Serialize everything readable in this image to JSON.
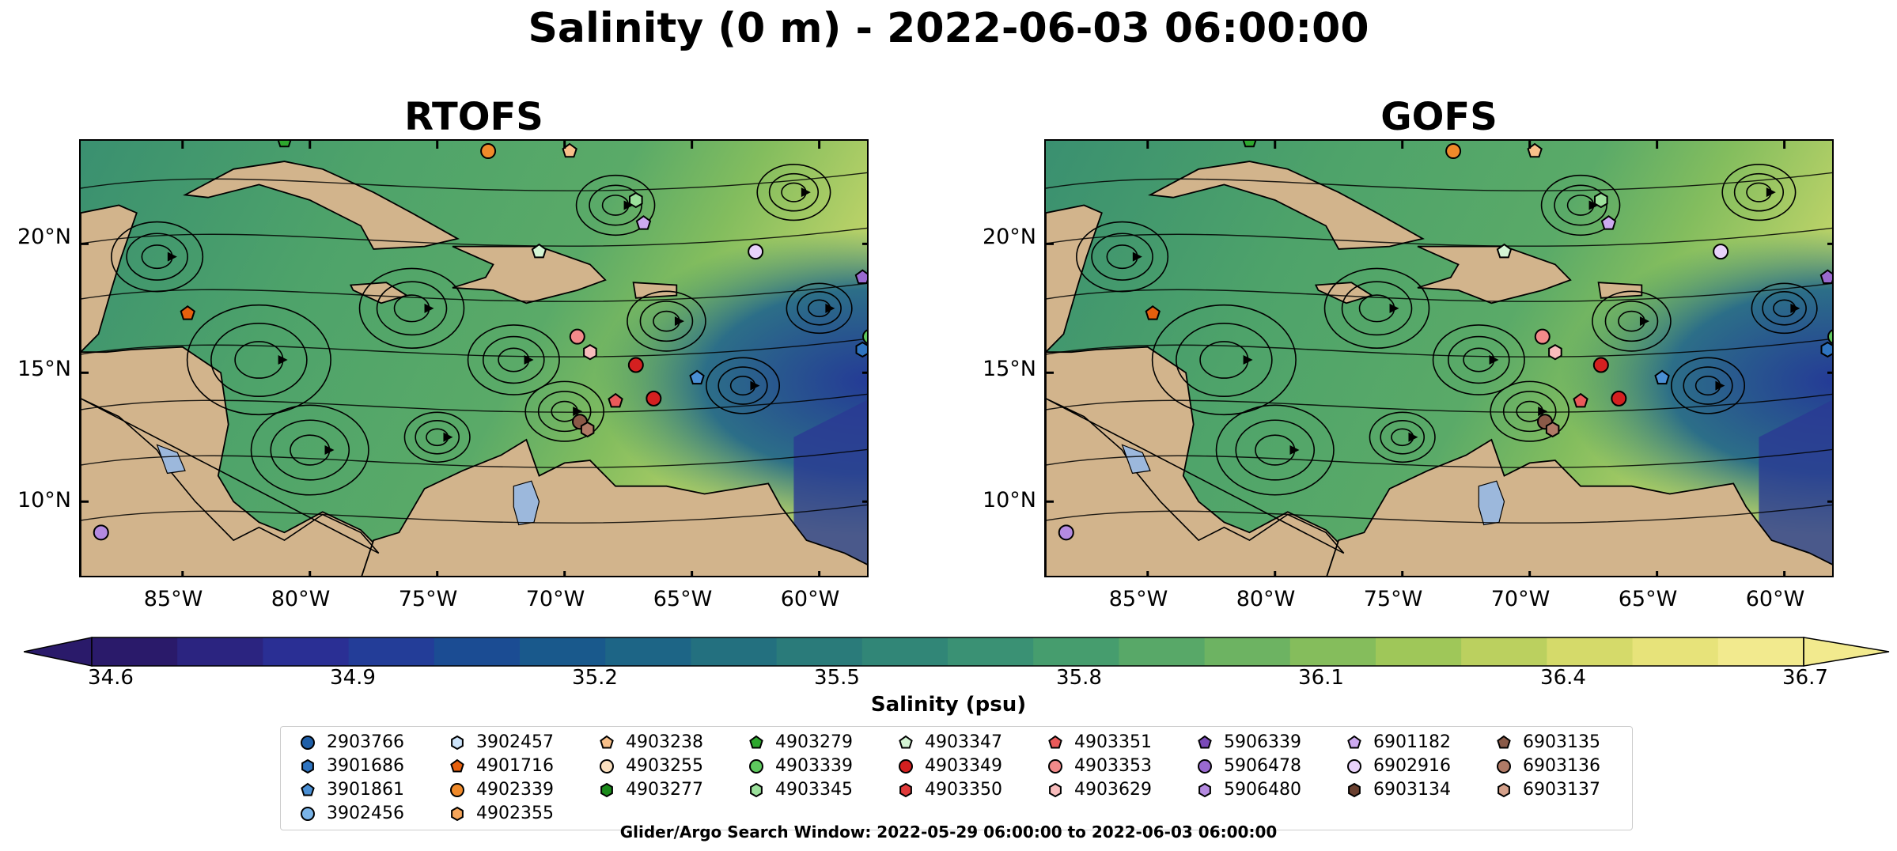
{
  "title": "Salinity (0 m) - 2022-06-03 06:00:00",
  "panels": [
    {
      "title": "RTOFS"
    },
    {
      "title": "GOFS"
    }
  ],
  "map": {
    "lat_labels": [
      "20°N",
      "15°N",
      "10°N"
    ],
    "lon_labels": [
      "85°W",
      "80°W",
      "75°W",
      "70°W",
      "65°W",
      "60°W"
    ],
    "extent": {
      "lon_min": -89,
      "lon_max": -58,
      "lat_min": 7,
      "lat_max": 24
    },
    "land_color": "#d2b48c",
    "lake_color": "#9cb8dc",
    "deep_color": "#2a1a6a"
  },
  "colorbar": {
    "label": "Salinity (psu)",
    "ticks": [
      "34.6",
      "34.9",
      "35.2",
      "35.5",
      "35.8",
      "36.1",
      "36.4",
      "36.7"
    ],
    "min": 34.6,
    "max": 36.7,
    "colors": [
      "#2a1a6a",
      "#2b2480",
      "#2a2f94",
      "#233d98",
      "#1b4c93",
      "#19598c",
      "#1d6586",
      "#23707f",
      "#2a7b7a",
      "#318677",
      "#3a9174",
      "#469d6e",
      "#58a868",
      "#6db362",
      "#85bd5c",
      "#9fc759",
      "#bbd05f",
      "#d5da6a",
      "#e7e37a",
      "#f2ea8e"
    ]
  },
  "legend": {
    "title": "Glider/Argo Search Window: 2022-05-29 06:00:00 to 2022-06-03 06:00:00",
    "columns": [
      [
        {
          "id": "2903766",
          "color": "#1f5fa8",
          "marker": "circle"
        },
        {
          "id": "3901686",
          "color": "#2f74c0",
          "marker": "hexagon"
        },
        {
          "id": "3901861",
          "color": "#4a8fd4",
          "marker": "pentagon"
        },
        {
          "id": "3902456",
          "color": "#7ab4e8",
          "marker": "circle"
        }
      ],
      [
        {
          "id": "3902457",
          "color": "#cde4fa",
          "marker": "hexagon"
        },
        {
          "id": "4901716",
          "color": "#e6600e",
          "marker": "pentagon"
        },
        {
          "id": "4902339",
          "color": "#f08a2a",
          "marker": "circle"
        },
        {
          "id": "4902355",
          "color": "#f5a55a",
          "marker": "hexagon"
        }
      ],
      [
        {
          "id": "4903238",
          "color": "#f8c08a",
          "marker": "pentagon"
        },
        {
          "id": "4903255",
          "color": "#fbe0c0",
          "marker": "circle"
        },
        {
          "id": "4903277",
          "color": "#1a8a1a",
          "marker": "hexagon"
        }
      ],
      [
        {
          "id": "4903279",
          "color": "#2ea82e",
          "marker": "pentagon"
        },
        {
          "id": "4903339",
          "color": "#5ec85e",
          "marker": "circle"
        },
        {
          "id": "4903345",
          "color": "#9be09b",
          "marker": "hexagon"
        }
      ],
      [
        {
          "id": "4903347",
          "color": "#d4f5d4",
          "marker": "pentagon"
        },
        {
          "id": "4903349",
          "color": "#d42020",
          "marker": "circle"
        },
        {
          "id": "4903350",
          "color": "#e03a3a",
          "marker": "hexagon"
        }
      ],
      [
        {
          "id": "4903351",
          "color": "#ea5a5a",
          "marker": "pentagon"
        },
        {
          "id": "4903353",
          "color": "#f28a8a",
          "marker": "circle"
        },
        {
          "id": "4903629",
          "color": "#f8bcbc",
          "marker": "hexagon"
        }
      ],
      [
        {
          "id": "5906339",
          "color": "#7a4ab8",
          "marker": "pentagon"
        },
        {
          "id": "5906478",
          "color": "#9a6ad0",
          "marker": "circle"
        },
        {
          "id": "5906480",
          "color": "#b48ae0",
          "marker": "hexagon"
        }
      ],
      [
        {
          "id": "6901182",
          "color": "#cdaaf0",
          "marker": "pentagon"
        },
        {
          "id": "6902916",
          "color": "#e8d2fa",
          "marker": "circle"
        },
        {
          "id": "6903134",
          "color": "#6a4030",
          "marker": "hexagon"
        }
      ],
      [
        {
          "id": "6903135",
          "color": "#8a5a48",
          "marker": "pentagon"
        },
        {
          "id": "6903136",
          "color": "#b07a66",
          "marker": "circle"
        },
        {
          "id": "6903137",
          "color": "#d4a08a",
          "marker": "hexagon"
        }
      ]
    ]
  }
}
